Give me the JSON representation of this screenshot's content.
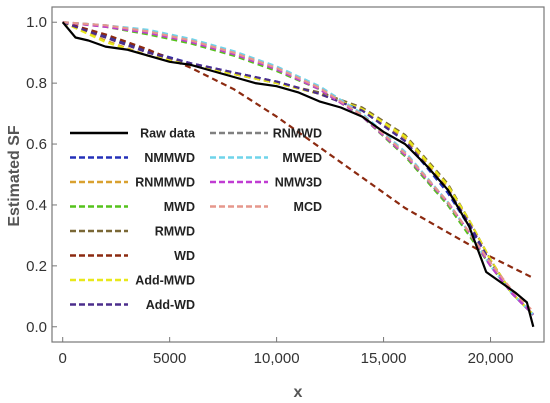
{
  "chart_data": {
    "type": "line",
    "title": "",
    "xlabel": "x",
    "ylabel": "Estimated SF",
    "xlim": [
      -500,
      22500
    ],
    "ylim": [
      -0.05,
      1.05
    ],
    "x_ticks": [
      0,
      5000,
      10000,
      15000,
      20000
    ],
    "x_tick_labels": [
      "0",
      "5000",
      "10,000",
      "15,000",
      "20,000"
    ],
    "y_ticks": [
      0.0,
      0.2,
      0.4,
      0.6,
      0.8,
      1.0
    ],
    "y_tick_labels": [
      "0.0",
      "0.2",
      "0.4",
      "0.6",
      "0.8",
      "1.0"
    ],
    "grid": false,
    "legend_position": "left, inside plot",
    "series": [
      {
        "name": "Raw data",
        "color": "#000000",
        "style": "solid",
        "x": [
          0,
          600,
          1200,
          2000,
          3000,
          4000,
          5000,
          6000,
          7000,
          8000,
          9000,
          10000,
          11000,
          12000,
          13000,
          14000,
          15000,
          16000,
          17000,
          18000,
          19000,
          19800,
          20600,
          21200,
          21700,
          22000
        ],
        "y": [
          1.0,
          0.95,
          0.94,
          0.92,
          0.91,
          0.89,
          0.87,
          0.86,
          0.84,
          0.82,
          0.8,
          0.79,
          0.77,
          0.74,
          0.72,
          0.69,
          0.64,
          0.6,
          0.53,
          0.45,
          0.33,
          0.18,
          0.14,
          0.11,
          0.08,
          0.0
        ]
      },
      {
        "name": "NMMWD",
        "color": "#2430b8",
        "style": "dashed",
        "x": [
          0,
          2000,
          4000,
          6000,
          8000,
          10000,
          12000,
          14000,
          16000,
          18000,
          19000,
          20000,
          21000,
          22000
        ],
        "y": [
          1.0,
          0.955,
          0.905,
          0.865,
          0.835,
          0.805,
          0.765,
          0.71,
          0.61,
          0.44,
          0.33,
          0.21,
          0.11,
          0.04
        ]
      },
      {
        "name": "RNMMWD",
        "color": "#d9a130",
        "style": "dashed",
        "x": [
          0,
          2000,
          4000,
          6000,
          8000,
          10000,
          12000,
          14000,
          16000,
          18000,
          19000,
          20000,
          21000,
          22000
        ],
        "y": [
          1.0,
          0.94,
          0.89,
          0.86,
          0.83,
          0.8,
          0.765,
          0.71,
          0.62,
          0.46,
          0.35,
          0.22,
          0.11,
          0.04
        ]
      },
      {
        "name": "MWD",
        "color": "#55c21c",
        "style": "dashed",
        "x": [
          0,
          2000,
          4000,
          6000,
          8000,
          10000,
          12000,
          14000,
          16000,
          18000,
          19000,
          20000,
          21000,
          22000
        ],
        "y": [
          1.0,
          0.985,
          0.96,
          0.93,
          0.89,
          0.84,
          0.78,
          0.69,
          0.56,
          0.4,
          0.3,
          0.2,
          0.11,
          0.04
        ]
      },
      {
        "name": "RMWD",
        "color": "#7a6836",
        "style": "dashed",
        "x": [
          0,
          2000,
          4000,
          6000,
          8000,
          10000,
          12000,
          14000,
          16000,
          18000,
          19000,
          20000,
          21000,
          22000
        ],
        "y": [
          1.0,
          0.95,
          0.9,
          0.86,
          0.83,
          0.8,
          0.77,
          0.72,
          0.63,
          0.47,
          0.35,
          0.22,
          0.11,
          0.04
        ]
      },
      {
        "name": "WD",
        "color": "#8c2a10",
        "style": "dashed",
        "x": [
          0,
          2000,
          4000,
          6000,
          8000,
          10000,
          12000,
          14000,
          16000,
          18000,
          20000,
          22000
        ],
        "y": [
          1.0,
          0.96,
          0.91,
          0.85,
          0.78,
          0.69,
          0.59,
          0.49,
          0.39,
          0.31,
          0.23,
          0.16
        ]
      },
      {
        "name": "Add-MWD",
        "color": "#e8e81a",
        "style": "dashed",
        "x": [
          0,
          2000,
          4000,
          6000,
          8000,
          10000,
          12000,
          14000,
          16000,
          18000,
          19000,
          20000,
          21000,
          22000
        ],
        "y": [
          1.0,
          0.935,
          0.89,
          0.86,
          0.83,
          0.8,
          0.765,
          0.715,
          0.625,
          0.465,
          0.35,
          0.22,
          0.11,
          0.04
        ]
      },
      {
        "name": "Add-WD",
        "color": "#4b2d8c",
        "style": "dashed",
        "x": [
          0,
          2000,
          4000,
          6000,
          8000,
          10000,
          12000,
          14000,
          16000,
          18000,
          19000,
          20000,
          21000,
          22000
        ],
        "y": [
          1.0,
          0.95,
          0.9,
          0.865,
          0.835,
          0.805,
          0.765,
          0.71,
          0.61,
          0.45,
          0.34,
          0.21,
          0.11,
          0.04
        ]
      },
      {
        "name": "RNMWD",
        "color": "#808080",
        "style": "dashed",
        "x": [
          0,
          2000,
          4000,
          6000,
          8000,
          10000,
          12000,
          14000,
          16000,
          18000,
          19000,
          20000,
          21000,
          22000
        ],
        "y": [
          1.0,
          0.99,
          0.97,
          0.94,
          0.9,
          0.85,
          0.785,
          0.695,
          0.565,
          0.405,
          0.31,
          0.2,
          0.11,
          0.04
        ]
      },
      {
        "name": "MWED",
        "color": "#6fd4ea",
        "style": "dashed",
        "x": [
          0,
          2000,
          4000,
          6000,
          8000,
          10000,
          12000,
          14000,
          16000,
          18000,
          19000,
          20000,
          21000,
          22000
        ],
        "y": [
          1.0,
          0.99,
          0.975,
          0.945,
          0.905,
          0.855,
          0.79,
          0.7,
          0.575,
          0.41,
          0.31,
          0.2,
          0.11,
          0.04
        ]
      },
      {
        "name": "NMW3D",
        "color": "#c03cd2",
        "style": "dashed",
        "x": [
          0,
          2000,
          4000,
          6000,
          8000,
          10000,
          12000,
          14000,
          16000,
          18000,
          19000,
          20000,
          21000,
          22000
        ],
        "y": [
          1.0,
          0.985,
          0.965,
          0.935,
          0.895,
          0.845,
          0.78,
          0.69,
          0.565,
          0.41,
          0.31,
          0.2,
          0.11,
          0.04
        ]
      },
      {
        "name": "MCD",
        "color": "#e6978c",
        "style": "dashed",
        "x": [
          0,
          2000,
          4000,
          6000,
          8000,
          10000,
          12000,
          14000,
          16000,
          18000,
          19000,
          20000,
          21000,
          22000
        ],
        "y": [
          1.0,
          0.99,
          0.97,
          0.94,
          0.9,
          0.85,
          0.785,
          0.695,
          0.57,
          0.41,
          0.31,
          0.21,
          0.12,
          0.05
        ]
      }
    ]
  }
}
